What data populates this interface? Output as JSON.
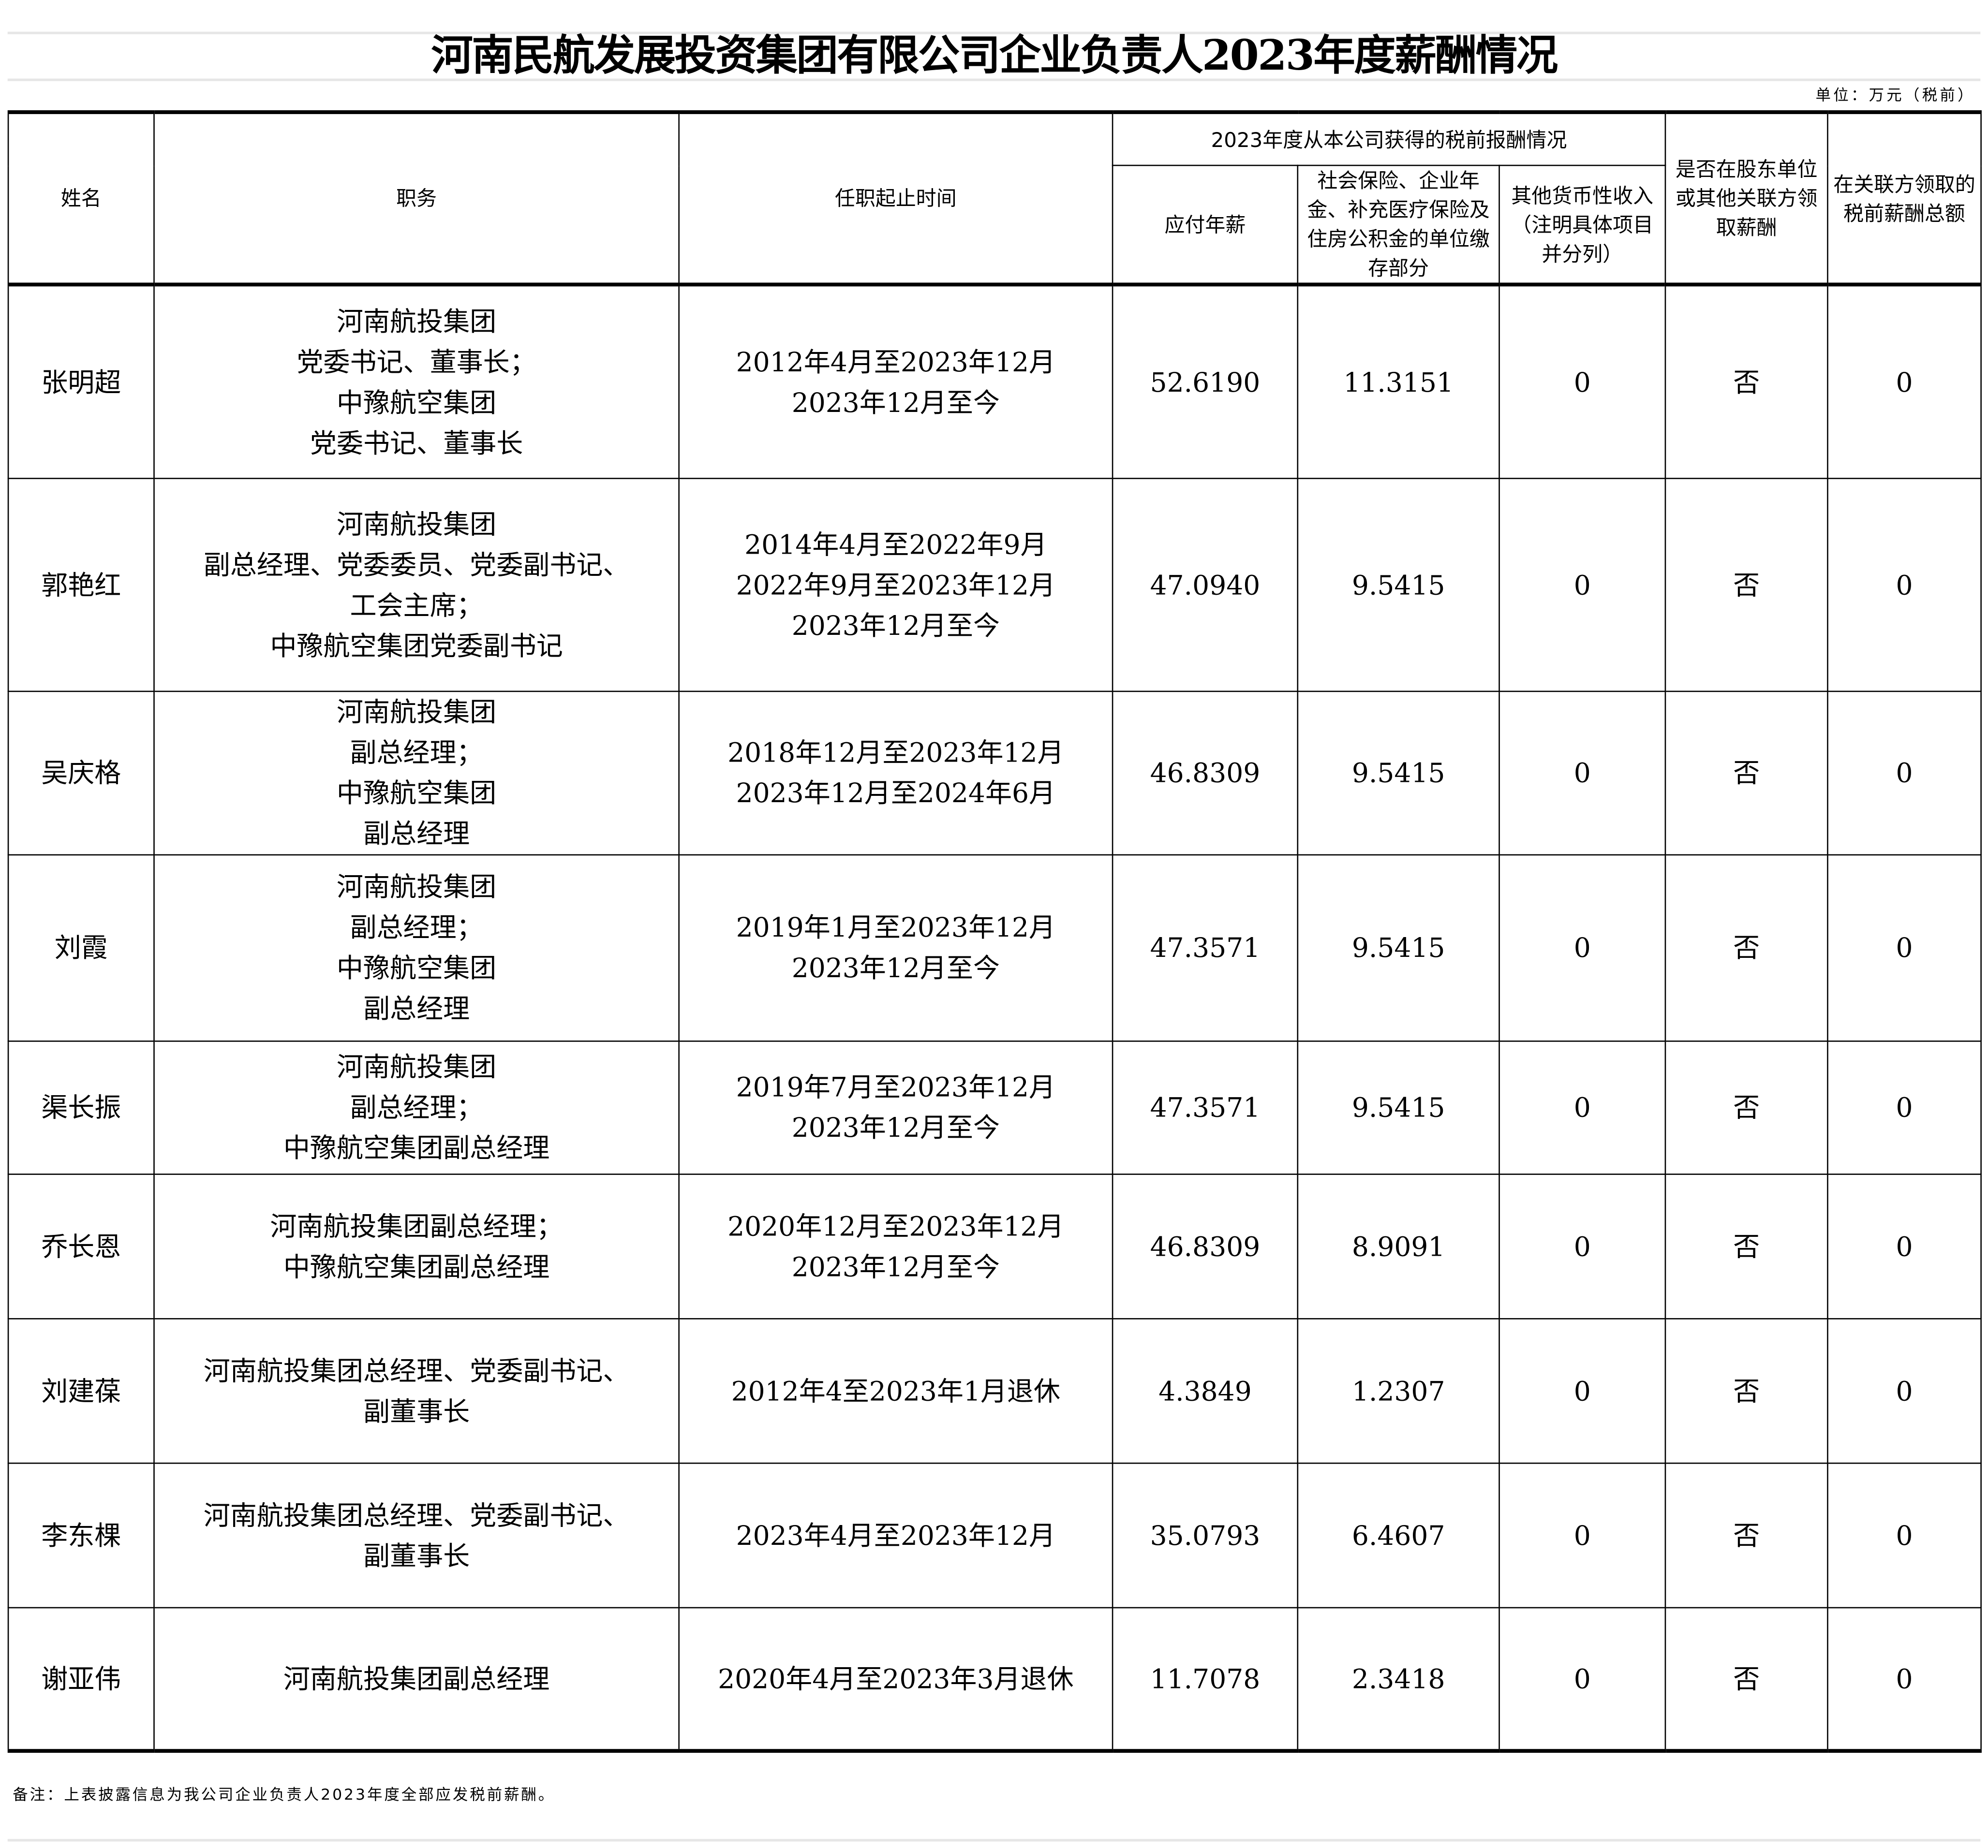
{
  "title": "河南民航发展投资集团有限公司企业负责人2023年度薪酬情况",
  "unit": "单位：万元（税前）",
  "headers": {
    "name": "姓名",
    "position": "职务",
    "term": "任职起止时间",
    "group": "2023年度从本公司获得的税前报酬情况",
    "salary": "应付年薪",
    "insurance": "社会保险、企业年金、补充医疗保险及住房公积金的单位缴存部分",
    "other": "其他货币性收入（注明具体项目并分列）",
    "shareholder": "是否在股东单位或其他关联方领取薪酬",
    "related": "在关联方领取的税前薪酬总额"
  },
  "rows": [
    {
      "name": "张明超",
      "position": "河南航投集团\n党委书记、董事长；\n中豫航空集团\n党委书记、董事长",
      "term": "2012年4月至2023年12月\n2023年12月至今",
      "salary": "52.6190",
      "insurance": "11.3151",
      "other": "0",
      "shareholder": "否",
      "related": "0"
    },
    {
      "name": "郭艳红",
      "position": "河南航投集团\n副总经理、党委委员、党委副书记、\n工会主席；\n中豫航空集团党委副书记",
      "term": "2014年4月至2022年9月\n2022年9月至2023年12月\n2023年12月至今",
      "salary": "47.0940",
      "insurance": "9.5415",
      "other": "0",
      "shareholder": "否",
      "related": "0"
    },
    {
      "name": "吴庆格",
      "position": "河南航投集团\n副总经理；\n中豫航空集团\n副总经理",
      "term": "2018年12月至2023年12月\n2023年12月至2024年6月",
      "salary": "46.8309",
      "insurance": "9.5415",
      "other": "0",
      "shareholder": "否",
      "related": "0"
    },
    {
      "name": "刘霞",
      "position": "河南航投集团\n副总经理；\n中豫航空集团\n副总经理",
      "term": "2019年1月至2023年12月\n2023年12月至今",
      "salary": "47.3571",
      "insurance": "9.5415",
      "other": "0",
      "shareholder": "否",
      "related": "0"
    },
    {
      "name": "渠长振",
      "position": "河南航投集团\n副总经理；\n中豫航空集团副总经理",
      "term": "2019年7月至2023年12月\n2023年12月至今",
      "salary": "47.3571",
      "insurance": "9.5415",
      "other": "0",
      "shareholder": "否",
      "related": "0"
    },
    {
      "name": "乔长恩",
      "position": "河南航投集团副总经理；\n中豫航空集团副总经理",
      "term": "2020年12月至2023年12月\n2023年12月至今",
      "salary": "46.8309",
      "insurance": "8.9091",
      "other": "0",
      "shareholder": "否",
      "related": "0"
    },
    {
      "name": "刘建葆",
      "position": "河南航投集团总经理、党委副书记、\n副董事长",
      "term": "2012年4至2023年1月退休",
      "salary": "4.3849",
      "insurance": "1.2307",
      "other": "0",
      "shareholder": "否",
      "related": "0"
    },
    {
      "name": "李东棵",
      "position": "河南航投集团总经理、党委副书记、\n副董事长",
      "term": "2023年4月至2023年12月",
      "salary": "35.0793",
      "insurance": "6.4607",
      "other": "0",
      "shareholder": "否",
      "related": "0"
    },
    {
      "name": "谢亚伟",
      "position": "河南航投集团副总经理",
      "term": "2020年4月至2023年3月退休",
      "salary": "11.7078",
      "insurance": "2.3418",
      "other": "0",
      "shareholder": "否",
      "related": "0"
    }
  ],
  "note": "备注：上表披露信息为我公司企业负责人2023年度全部应发税前薪酬。"
}
